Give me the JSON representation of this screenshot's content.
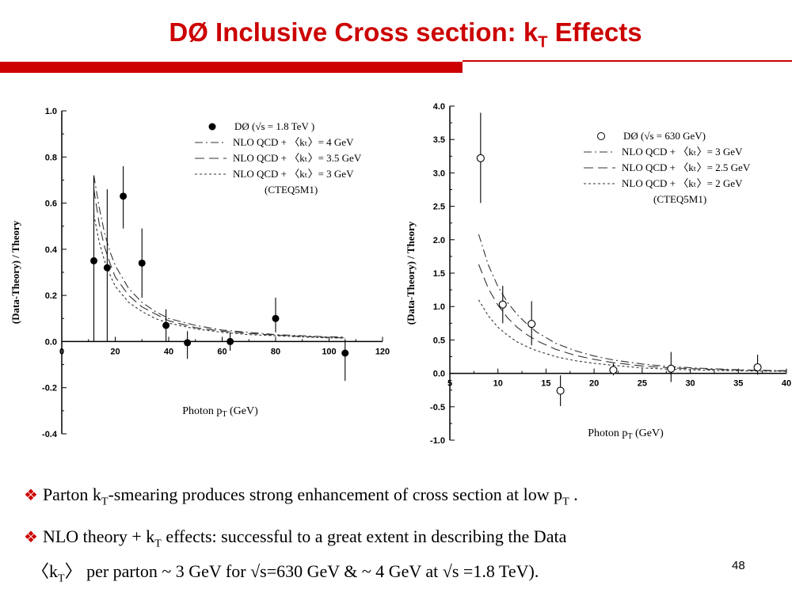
{
  "slide": {
    "title_main": "DØ Inclusive Cross section: k",
    "title_sub": "T",
    "title_tail": " Effects",
    "bullet1_a": "Parton k",
    "bullet1_sub": "T",
    "bullet1_b": "-smearing  produces strong enhancement of cross section at low p",
    "bullet1_sub2": "T",
    "bullet1_c": " .",
    "bullet2_a": "NLO theory + k",
    "bullet2_sub": "T",
    "bullet2_b": " effects: successful to a great extent in describing the Data",
    "bullet2_line2_a": "〈k",
    "bullet2_line2_sub": "T",
    "bullet2_line2_b": "〉 per parton ~ 3 GeV for √s=630 GeV &  ~ 4 GeV at √s =1.8 TeV).",
    "page_number": "48",
    "accent_color": "#cc0000",
    "bullet_icon": "diamond-bullet-icon"
  },
  "chart_data": [
    {
      "type": "scatter",
      "xlabel_a": "Photon p",
      "xlabel_sub": "T",
      "xlabel_b": " (GeV)",
      "ylabel": "(Data-Theory) / Theory",
      "xlim": [
        0,
        120
      ],
      "ylim": [
        -0.4,
        1.0
      ],
      "xticks": [
        0,
        20,
        40,
        60,
        80,
        100,
        120
      ],
      "xtick_labels": [
        "0",
        "20",
        "40",
        "60",
        "80",
        "100",
        "120"
      ],
      "yticks": [
        -0.4,
        -0.2,
        0.0,
        0.2,
        0.4,
        0.6,
        0.8,
        1.0
      ],
      "ytick_labels": [
        "-0.4",
        "-0.2",
        "0.0",
        "0.2",
        "0.4",
        "0.6",
        "0.8",
        "1.0"
      ],
      "legend": {
        "data_label_a": "DØ  (",
        "data_label_sqrt": "√s",
        "data_label_b": " = 1.8 TeV )",
        "curve_labels": [
          "NLO QCD + 〈kₜ〉= 4 GeV",
          "NLO QCD + 〈kₜ〉= 3.5 GeV",
          "NLO QCD + 〈kₜ〉= 3 GeV"
        ],
        "note": "(CTEQ5M1)",
        "placement": "top-right"
      },
      "marker": "filled-circle",
      "points": [
        {
          "x": 12,
          "y": 0.35,
          "err_lo": 0.35,
          "err_hi": 0.37
        },
        {
          "x": 17,
          "y": 0.32,
          "err_lo": 0.32,
          "err_hi": 0.34
        },
        {
          "x": 23,
          "y": 0.63,
          "err_lo": 0.14,
          "err_hi": 0.13
        },
        {
          "x": 30,
          "y": 0.34,
          "err_lo": 0.15,
          "err_hi": 0.15
        },
        {
          "x": 39,
          "y": 0.07,
          "err_lo": 0.07,
          "err_hi": 0.07
        },
        {
          "x": 47,
          "y": -0.005,
          "err_lo": 0.07,
          "err_hi": 0.05
        },
        {
          "x": 63,
          "y": 0.0,
          "err_lo": 0.04,
          "err_hi": 0.04
        },
        {
          "x": 80,
          "y": 0.1,
          "err_lo": 0.06,
          "err_hi": 0.09
        },
        {
          "x": 106,
          "y": -0.05,
          "err_lo": 0.12,
          "err_hi": 0.06
        }
      ],
      "curves": [
        {
          "name": "NLO QCD + 〈kT〉= 4 GeV",
          "style": "dashdot",
          "x": [
            12,
            14,
            16,
            18,
            20,
            25,
            30,
            35,
            40,
            50,
            60,
            70,
            80,
            90,
            100,
            106
          ],
          "y": [
            0.72,
            0.58,
            0.47,
            0.39,
            0.33,
            0.23,
            0.17,
            0.13,
            0.1,
            0.07,
            0.05,
            0.04,
            0.03,
            0.025,
            0.02,
            0.02
          ]
        },
        {
          "name": "NLO QCD + 〈kT〉= 3.5 GeV",
          "style": "dashed",
          "x": [
            12,
            14,
            16,
            18,
            20,
            25,
            30,
            35,
            40,
            50,
            60,
            70,
            80,
            90,
            100,
            106
          ],
          "y": [
            0.66,
            0.51,
            0.41,
            0.34,
            0.28,
            0.2,
            0.15,
            0.12,
            0.09,
            0.06,
            0.045,
            0.035,
            0.028,
            0.022,
            0.018,
            0.016
          ]
        },
        {
          "name": "NLO QCD + 〈kT〉= 3 GeV",
          "style": "dotted",
          "x": [
            12,
            14,
            16,
            18,
            20,
            25,
            30,
            35,
            40,
            50,
            60,
            70,
            80,
            90,
            100,
            106
          ],
          "y": [
            0.55,
            0.43,
            0.35,
            0.29,
            0.24,
            0.17,
            0.13,
            0.1,
            0.08,
            0.055,
            0.04,
            0.03,
            0.025,
            0.02,
            0.016,
            0.015
          ]
        }
      ]
    },
    {
      "type": "scatter",
      "xlabel_a": "Photon p",
      "xlabel_sub": "T",
      "xlabel_b": " (GeV)",
      "ylabel": "(Data-Theory) / Theory",
      "xlim": [
        5,
        40
      ],
      "ylim": [
        -1.0,
        4.0
      ],
      "xticks": [
        5,
        10,
        15,
        20,
        25,
        30,
        35,
        40
      ],
      "xtick_labels": [
        "5",
        "10",
        "15",
        "20",
        "25",
        "30",
        "35",
        "40"
      ],
      "yticks": [
        -1.0,
        -0.5,
        0.0,
        0.5,
        1.0,
        1.5,
        2.0,
        2.5,
        3.0,
        3.5,
        4.0
      ],
      "ytick_labels": [
        "-1.0",
        "-0.5",
        "0.0",
        "0.5",
        "1.0",
        "1.5",
        "2.0",
        "2.5",
        "3.0",
        "3.5",
        "4.0"
      ],
      "legend": {
        "data_label_a": "DØ  (",
        "data_label_sqrt": "√s",
        "data_label_b": " = 630 GeV)",
        "curve_labels": [
          "NLO QCD + 〈kₜ〉= 3 GeV",
          "NLO QCD + 〈kₜ〉= 2.5 GeV",
          "NLO QCD + 〈kₜ〉= 2 GeV"
        ],
        "note": "(CTEQ5M1)",
        "placement": "top-right"
      },
      "marker": "open-circle",
      "points": [
        {
          "x": 8.2,
          "y": 3.22,
          "err_lo": 0.67,
          "err_hi": 0.68
        },
        {
          "x": 10.5,
          "y": 1.03,
          "err_lo": 0.28,
          "err_hi": 0.28
        },
        {
          "x": 13.5,
          "y": 0.74,
          "err_lo": 0.32,
          "err_hi": 0.34
        },
        {
          "x": 16.5,
          "y": -0.26,
          "err_lo": 0.23,
          "err_hi": 0.23
        },
        {
          "x": 22.0,
          "y": 0.05,
          "err_lo": 0.08,
          "err_hi": 0.1
        },
        {
          "x": 28.0,
          "y": 0.07,
          "err_lo": 0.2,
          "err_hi": 0.25
        },
        {
          "x": 37.0,
          "y": 0.09,
          "err_lo": 0.11,
          "err_hi": 0.19
        }
      ],
      "curves": [
        {
          "name": "NLO QCD + 〈kT〉= 3 GeV",
          "style": "dashdot",
          "x": [
            8,
            9,
            10,
            11,
            12,
            13,
            14,
            16,
            18,
            20,
            22,
            25,
            28,
            32,
            36,
            40
          ],
          "y": [
            2.08,
            1.62,
            1.3,
            1.06,
            0.88,
            0.74,
            0.62,
            0.45,
            0.34,
            0.26,
            0.2,
            0.14,
            0.1,
            0.07,
            0.05,
            0.04
          ]
        },
        {
          "name": "NLO QCD + 〈kT〉= 2.5 GeV",
          "style": "dashed",
          "x": [
            8,
            9,
            10,
            11,
            12,
            13,
            14,
            16,
            18,
            20,
            22,
            25,
            28,
            32,
            36,
            40
          ],
          "y": [
            1.63,
            1.27,
            1.02,
            0.83,
            0.69,
            0.58,
            0.49,
            0.36,
            0.27,
            0.21,
            0.16,
            0.11,
            0.08,
            0.06,
            0.045,
            0.035
          ]
        },
        {
          "name": "NLO QCD + 〈kT〉= 2 GeV",
          "style": "dotted",
          "x": [
            8,
            9,
            10,
            11,
            12,
            13,
            14,
            16,
            18,
            20,
            22,
            25,
            28,
            32,
            36,
            40
          ],
          "y": [
            1.1,
            0.86,
            0.69,
            0.57,
            0.47,
            0.4,
            0.34,
            0.25,
            0.19,
            0.15,
            0.12,
            0.08,
            0.06,
            0.045,
            0.035,
            0.03
          ]
        }
      ]
    }
  ]
}
